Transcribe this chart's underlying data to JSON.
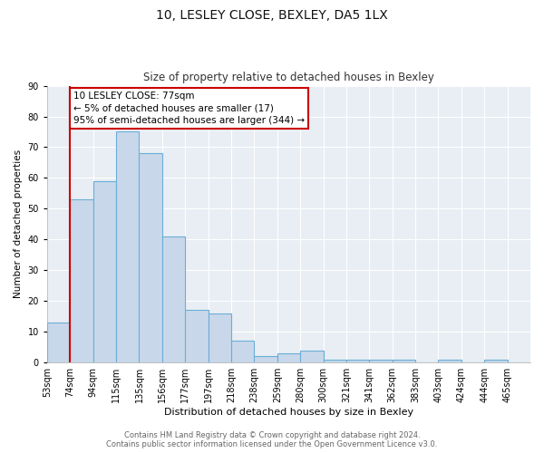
{
  "title": "10, LESLEY CLOSE, BEXLEY, DA5 1LX",
  "subtitle": "Size of property relative to detached houses in Bexley",
  "xlabel": "Distribution of detached houses by size in Bexley",
  "ylabel": "Number of detached properties",
  "bin_labels": [
    "53sqm",
    "74sqm",
    "94sqm",
    "115sqm",
    "135sqm",
    "156sqm",
    "177sqm",
    "197sqm",
    "218sqm",
    "238sqm",
    "259sqm",
    "280sqm",
    "300sqm",
    "321sqm",
    "341sqm",
    "362sqm",
    "383sqm",
    "403sqm",
    "424sqm",
    "444sqm",
    "465sqm"
  ],
  "bar_heights": [
    13,
    53,
    59,
    75,
    68,
    41,
    17,
    16,
    7,
    2,
    3,
    4,
    1,
    1,
    1,
    1,
    0,
    1,
    0,
    1,
    0
  ],
  "bar_color": "#c8d8ea",
  "bar_edge_color": "#6baed6",
  "red_line_x": 1,
  "annotation_text": "10 LESLEY CLOSE: 77sqm\n← 5% of detached houses are smaller (17)\n95% of semi-detached houses are larger (344) →",
  "annotation_box_color": "white",
  "annotation_box_edge_color": "#cc0000",
  "ylim": [
    0,
    90
  ],
  "yticks": [
    0,
    10,
    20,
    30,
    40,
    50,
    60,
    70,
    80,
    90
  ],
  "footer_text": "Contains HM Land Registry data © Crown copyright and database right 2024.\nContains public sector information licensed under the Open Government Licence v3.0.",
  "fig_facecolor": "#ffffff",
  "axes_facecolor": "#e8eef4",
  "grid_color": "#ffffff",
  "title_fontsize": 10,
  "subtitle_fontsize": 8.5,
  "ylabel_fontsize": 7.5,
  "xlabel_fontsize": 8,
  "tick_fontsize": 7,
  "footer_fontsize": 6,
  "annotation_fontsize": 7.5
}
